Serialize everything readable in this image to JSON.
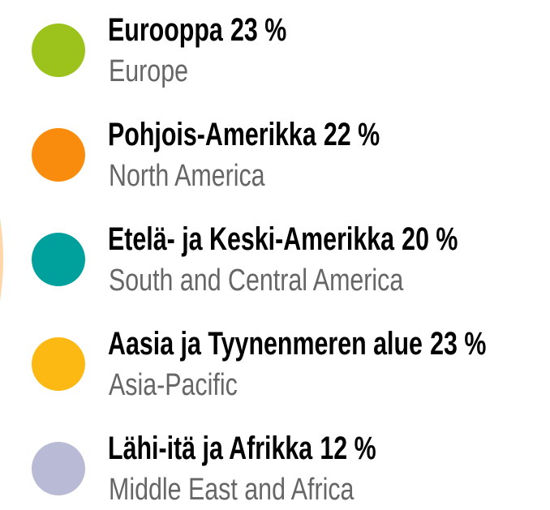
{
  "chart_data": {
    "type": "pie",
    "categories": [
      "Eurooppa",
      "Pohjois-Amerikka",
      "Etelä- ja Keski-Amerikka",
      "Aasia ja Tyynenmeren alue",
      "Lähi-itä ja Afrikka"
    ],
    "category_translations": [
      "Europe",
      "North America",
      "South and Central America",
      "Asia-Pacific",
      "Middle East and Africa"
    ],
    "values": [
      23,
      22,
      20,
      23,
      12
    ],
    "value_labels": [
      "23 %",
      "22 %",
      "20 %",
      "23 %",
      "12 %"
    ],
    "colors": [
      "#9bc31c",
      "#f98c0c",
      "#00a19c",
      "#fdb913",
      "#b8bad6"
    ]
  }
}
